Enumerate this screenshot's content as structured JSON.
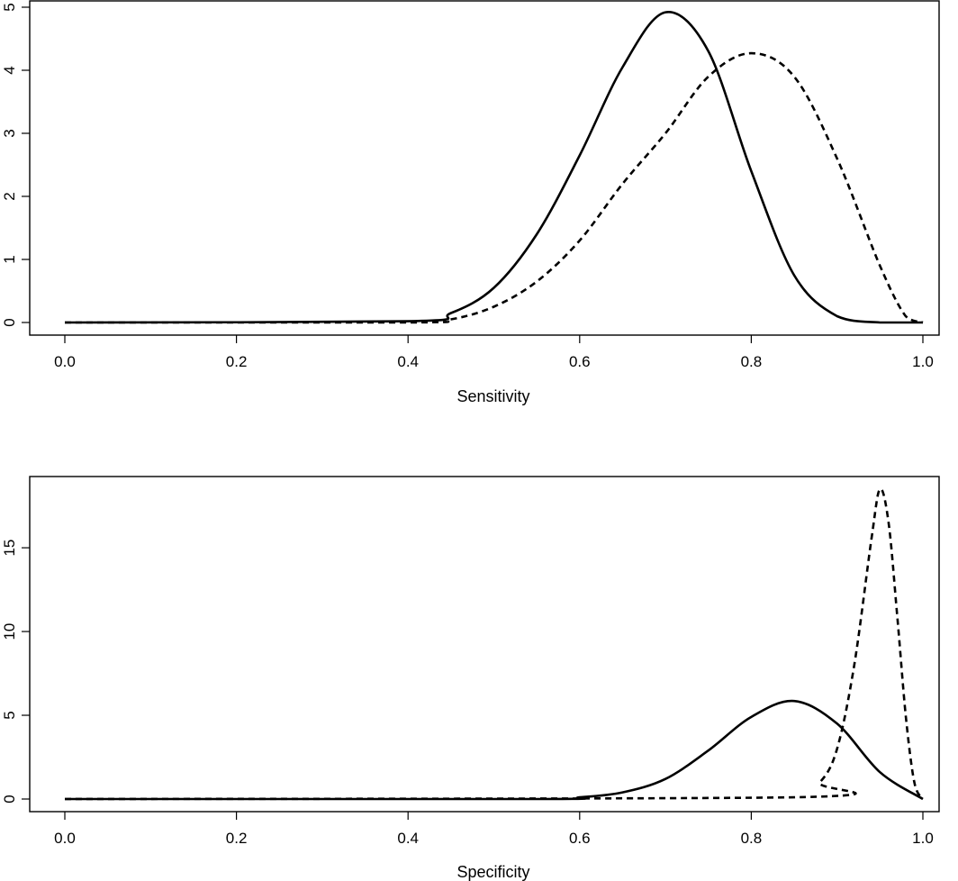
{
  "chart_data": [
    {
      "type": "line",
      "xlabel": "Sensitivity",
      "ylabel": "",
      "xlim": [
        0,
        1
      ],
      "ylim": [
        0,
        5
      ],
      "x_ticks": [
        "0.0",
        "0.2",
        "0.4",
        "0.6",
        "0.8",
        "1.0"
      ],
      "y_ticks": [
        "0",
        "1",
        "2",
        "3",
        "4",
        "5"
      ],
      "grid": false,
      "series": [
        {
          "line_style": "solid",
          "x": [
            0.0,
            0.4,
            0.45,
            0.5,
            0.55,
            0.6,
            0.65,
            0.7,
            0.75,
            0.8,
            0.85,
            0.9,
            0.95,
            1.0
          ],
          "y": [
            0.0,
            0.02,
            0.15,
            0.55,
            1.4,
            2.65,
            4.05,
            4.92,
            4.3,
            2.4,
            0.75,
            0.1,
            0.0,
            0.0
          ]
        },
        {
          "line_style": "dashed",
          "x": [
            0.0,
            0.4,
            0.45,
            0.5,
            0.55,
            0.6,
            0.65,
            0.7,
            0.75,
            0.8,
            0.85,
            0.9,
            0.95,
            0.98,
            1.0
          ],
          "y": [
            0.0,
            0.0,
            0.05,
            0.25,
            0.65,
            1.3,
            2.2,
            3.0,
            3.9,
            4.27,
            3.9,
            2.6,
            0.9,
            0.1,
            0.0
          ]
        }
      ]
    },
    {
      "type": "line",
      "xlabel": "Specificity",
      "ylabel": "",
      "xlim": [
        0,
        1
      ],
      "ylim": [
        0,
        19
      ],
      "x_ticks": [
        "0.0",
        "0.2",
        "0.4",
        "0.6",
        "0.8",
        "1.0"
      ],
      "y_ticks": [
        "0",
        "5",
        "10",
        "15"
      ],
      "grid": false,
      "series": [
        {
          "line_style": "solid",
          "x": [
            0.0,
            0.55,
            0.6,
            0.65,
            0.7,
            0.75,
            0.8,
            0.85,
            0.9,
            0.95,
            1.0
          ],
          "y": [
            0.0,
            0.0,
            0.1,
            0.4,
            1.2,
            2.9,
            4.9,
            5.85,
            4.5,
            1.6,
            0.0
          ],
          "label_points": "peak near 0.85"
        },
        {
          "line_style": "dashed",
          "x": [
            0.0,
            0.85,
            0.88,
            0.9,
            0.92,
            0.94,
            0.95,
            0.96,
            0.97,
            0.98,
            0.99,
            1.0
          ],
          "y": [
            0.0,
            0.1,
            1.0,
            3.0,
            8.0,
            15.5,
            18.5,
            16.5,
            11.0,
            5.0,
            1.0,
            0.0
          ]
        }
      ]
    }
  ]
}
